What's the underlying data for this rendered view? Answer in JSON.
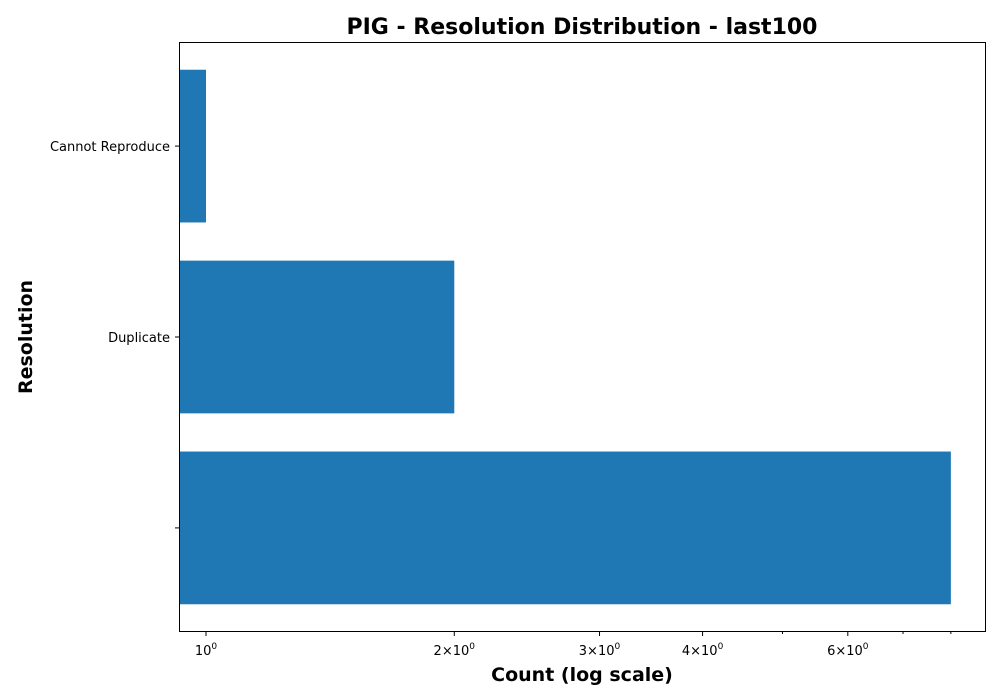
{
  "chart_data": {
    "type": "bar",
    "orientation": "horizontal",
    "title": "PIG - Resolution Distribution - last100",
    "xlabel": "Count (log scale)",
    "ylabel": "Resolution",
    "x_scale": "log",
    "xlim": [
      0.93,
      8.8
    ],
    "categories": [
      "Cannot Reproduce",
      "Duplicate",
      ""
    ],
    "values": [
      1,
      2,
      8
    ],
    "bar_color": "#1f77b4",
    "grid": false,
    "x_ticks": [
      {
        "value": 1,
        "base": "10",
        "exp": "0"
      },
      {
        "value": 2,
        "base": "2×10",
        "exp": "0"
      },
      {
        "value": 3,
        "base": "3×10",
        "exp": "0"
      },
      {
        "value": 4,
        "base": "4×10",
        "exp": "0"
      },
      {
        "value": 6,
        "base": "6×10",
        "exp": "0"
      }
    ],
    "x_minor_ticks": [
      5,
      7,
      8
    ]
  }
}
